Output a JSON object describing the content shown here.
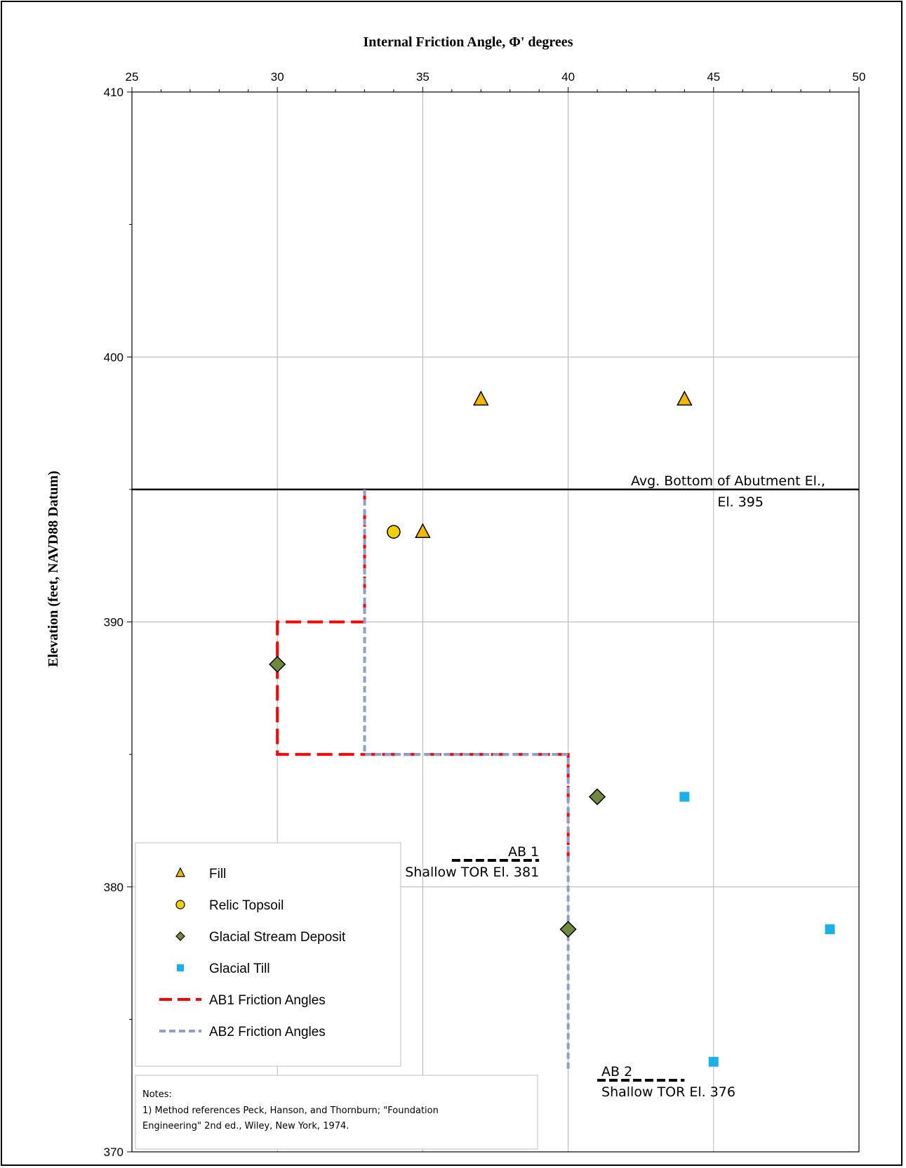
{
  "chart_data": {
    "type": "scatter",
    "title": "Internal Friction Angle, Φ' degrees",
    "xlabel": "Internal Friction Angle, Φ' degrees",
    "ylabel": "Elevation (feet, NAVD88 Datum)",
    "xlim": [
      25,
      50
    ],
    "ylim": [
      370,
      410
    ],
    "x_ticks": [
      25,
      30,
      35,
      40,
      45,
      50
    ],
    "y_ticks": [
      370,
      380,
      390,
      400,
      410
    ],
    "x_axis_position": "top",
    "grid": true,
    "legend_position": "bottom-left",
    "series": [
      {
        "name": "Fill",
        "marker": "triangle",
        "color": "#f2b800",
        "points": [
          [
            37,
            398.4
          ],
          [
            44,
            398.4
          ],
          [
            35,
            393.4
          ]
        ]
      },
      {
        "name": "Relic Topsoil",
        "marker": "circle",
        "color": "#f2d000",
        "points": [
          [
            34,
            393.4
          ]
        ]
      },
      {
        "name": "Glacial Stream Deposit",
        "marker": "diamond",
        "color": "#6f8a3a",
        "points": [
          [
            30,
            388.4
          ],
          [
            41,
            383.4
          ],
          [
            40,
            378.4
          ]
        ]
      },
      {
        "name": "Glacial Till",
        "marker": "square",
        "color": "#1bb0e8",
        "points": [
          [
            44,
            383.4
          ],
          [
            49,
            378.4
          ],
          [
            45,
            373.4
          ]
        ]
      },
      {
        "name": "AB1 Friction Angles",
        "marker": "line",
        "color": "#ff0000",
        "points": [
          [
            33,
            395
          ],
          [
            33,
            390
          ],
          [
            30,
            390
          ],
          [
            30,
            385
          ],
          [
            40,
            385
          ],
          [
            40,
            381
          ]
        ]
      },
      {
        "name": "AB2 Friction Angles",
        "marker": "line",
        "color": "#8ea0c8",
        "points": [
          [
            33,
            395
          ],
          [
            33,
            385
          ],
          [
            40,
            385
          ],
          [
            40,
            373
          ]
        ]
      }
    ],
    "reference_lines": [
      {
        "y": 395,
        "label_line1": "Avg. Bottom of Abutment El.,",
        "label_line2": "El. 395"
      }
    ],
    "annotations": [
      {
        "label_line1": "AB 1",
        "label_line2": "Shallow TOR El. 381",
        "x_start": 36,
        "x_end": 39,
        "y": 381
      },
      {
        "label_line1": "AB 2",
        "label_line2": "Shallow TOR El. 376",
        "x_start": 41,
        "x_end": 44,
        "y": 372.7
      }
    ],
    "notes": {
      "title": "Notes:",
      "line1": "1) Method references Peck, Hanson, and Thornburn; \"Foundation",
      "line2": "Engineering\" 2nd ed., Wiley, New York, 1974."
    }
  }
}
